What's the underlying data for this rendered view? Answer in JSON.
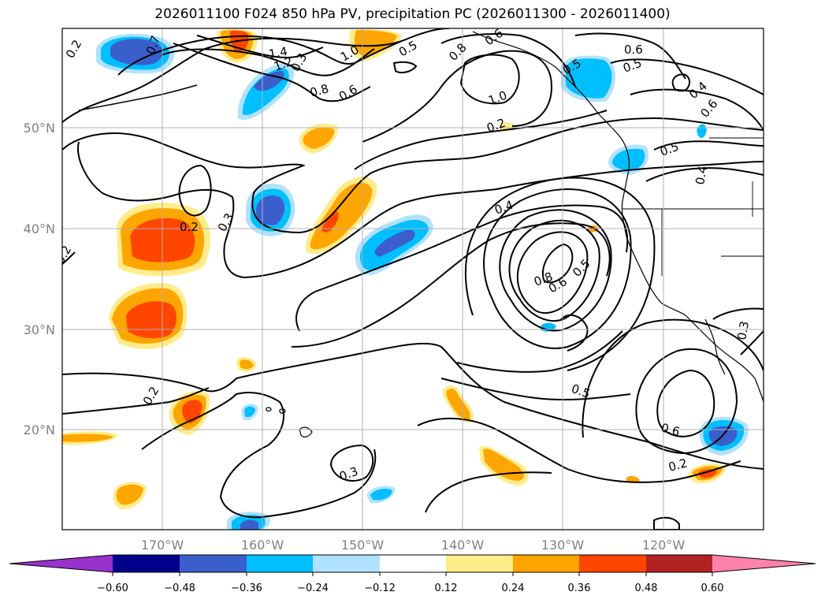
{
  "title": "2026011100 F024 850 hPa PV, precipitation PC (2026011300 - 2026011400)",
  "map": {
    "lon_labels": [
      "170°W",
      "160°W",
      "150°W",
      "140°W",
      "130°W",
      "120°W"
    ],
    "lat_labels": [
      "50°N",
      "40°N",
      "30°N",
      "20°N"
    ],
    "colors": {
      "neg_060": "#9932cc",
      "neg_048": "#00008b",
      "neg_036": "#3a5fcd",
      "neg_024": "#00bfff",
      "neg_012": "#b0e2ff",
      "zero": "#ffffff",
      "pos_012": "#ffec8b",
      "pos_024": "#ffa500",
      "pos_036": "#ff4500",
      "pos_048": "#b22222",
      "pos_060": "#ff82ab"
    },
    "contour_labels": [
      "0.2",
      "0.7",
      "1.2",
      "1.4",
      "1.0",
      "0.5",
      "0.8",
      "0.6",
      "0.6",
      "0.5",
      "0.4",
      "0.6",
      "0.5",
      "0.4",
      "0.3",
      "0.8",
      "0.6",
      "0.5",
      "0.4",
      "0.2",
      "0.2",
      "0.3",
      "0.2",
      "0.5",
      "0.6",
      "0.2",
      "0.3",
      "0.3",
      "0.8",
      "1.0",
      "0.6",
      "0.5",
      "0.2"
    ]
  },
  "colorbar": {
    "tick_labels": [
      "−0.60",
      "−0.48",
      "−0.36",
      "−0.24",
      "−0.12",
      "0.12",
      "0.24",
      "0.36",
      "0.48",
      "0.60"
    ],
    "colors": [
      "#9932cc",
      "#00008b",
      "#3a5fcd",
      "#00bfff",
      "#b0e2ff",
      "#ffffff",
      "#ffec8b",
      "#ffa500",
      "#ff4500",
      "#b22222",
      "#ff82ab"
    ]
  }
}
